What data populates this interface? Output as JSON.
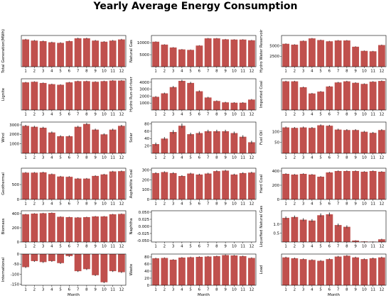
{
  "title": "Yearly Average Energy Consumption",
  "bar_color": "#c0504d",
  "err_color": "#444444",
  "chart_data": [
    {
      "type": "bar",
      "ylabel": "Total Generation(MWh)",
      "xlabel": "",
      "categories": [
        "1",
        "2",
        "3",
        "4",
        "5",
        "6",
        "7",
        "8",
        "9",
        "10",
        "11",
        "12"
      ],
      "values": [
        48,
        46,
        45,
        43,
        42,
        45,
        50,
        50,
        46,
        44,
        46,
        48
      ],
      "err": [
        1,
        1,
        1,
        1,
        1,
        1,
        1,
        1,
        1,
        1,
        1,
        1
      ],
      "ylim": [
        0,
        55
      ],
      "yticks": [],
      "ticklabels": []
    },
    {
      "type": "bar",
      "ylabel": "Natural Gas",
      "xlabel": "",
      "categories": [
        "1",
        "2",
        "3",
        "4",
        "5",
        "6",
        "7",
        "8",
        "9",
        "10",
        "11",
        "12"
      ],
      "values": [
        10400,
        9200,
        8000,
        7200,
        7000,
        8800,
        11800,
        11800,
        11400,
        11300,
        11300,
        11000
      ],
      "err": [
        150,
        150,
        150,
        150,
        150,
        150,
        150,
        150,
        150,
        150,
        150,
        150
      ],
      "ylim": [
        0,
        13000
      ],
      "yticks": [
        5000,
        10000
      ],
      "ticklabels": [
        "5000",
        "10000"
      ]
    },
    {
      "type": "bar",
      "ylabel": "Hydro Water Reservoir",
      "xlabel": "",
      "categories": [
        "1",
        "2",
        "3",
        "4",
        "5",
        "6",
        "7",
        "8",
        "9",
        "10",
        "11",
        "12"
      ],
      "values": [
        5500,
        5300,
        6200,
        6800,
        6400,
        6100,
        6300,
        6300,
        4800,
        3800,
        3700,
        5200
      ],
      "err": [
        100,
        100,
        100,
        100,
        100,
        100,
        100,
        100,
        100,
        100,
        100,
        100
      ],
      "ylim": [
        0,
        7500
      ],
      "yticks": [
        2500,
        5000
      ],
      "ticklabels": [
        "2500",
        "5000"
      ]
    },
    {
      "type": "bar",
      "ylabel": "Lignite",
      "xlabel": "",
      "categories": [
        "1",
        "2",
        "3",
        "4",
        "5",
        "6",
        "7",
        "8",
        "9",
        "10",
        "11",
        "12"
      ],
      "values": [
        4600,
        4700,
        4500,
        4300,
        4200,
        4600,
        4800,
        4800,
        4700,
        4800,
        4900,
        4900
      ],
      "err": [
        80,
        80,
        80,
        80,
        80,
        80,
        80,
        80,
        80,
        80,
        80,
        80
      ],
      "ylim": [
        0,
        5200
      ],
      "yticks": [],
      "ticklabels": []
    },
    {
      "type": "bar",
      "ylabel": "Hydro Run-of-river",
      "xlabel": "",
      "categories": [
        "1",
        "2",
        "3",
        "4",
        "5",
        "6",
        "7",
        "8",
        "9",
        "10",
        "11",
        "12"
      ],
      "values": [
        1900,
        2400,
        3300,
        4200,
        3900,
        2700,
        1800,
        1300,
        1100,
        1050,
        1050,
        1500
      ],
      "err": [
        100,
        100,
        150,
        150,
        150,
        120,
        100,
        80,
        80,
        80,
        80,
        80
      ],
      "ylim": [
        0,
        4500
      ],
      "yticks": [
        1000,
        2000,
        3000,
        4000
      ],
      "ticklabels": [
        "1000",
        "2000",
        "3000",
        "4000"
      ]
    },
    {
      "type": "bar",
      "ylabel": "Imported Coal",
      "xlabel": "",
      "categories": [
        "1",
        "2",
        "3",
        "4",
        "5",
        "6",
        "7",
        "8",
        "9",
        "10",
        "11",
        "12"
      ],
      "values": [
        7800,
        7800,
        6200,
        4500,
        5000,
        6400,
        7500,
        7800,
        7400,
        7100,
        7700,
        7900
      ],
      "err": [
        150,
        150,
        150,
        150,
        150,
        150,
        150,
        150,
        150,
        150,
        150,
        150
      ],
      "ylim": [
        0,
        8500
      ],
      "yticks": [],
      "ticklabels": []
    },
    {
      "type": "bar",
      "ylabel": "Wind",
      "xlabel": "",
      "categories": [
        "1",
        "2",
        "3",
        "4",
        "5",
        "6",
        "7",
        "8",
        "9",
        "10",
        "11",
        "12"
      ],
      "values": [
        2900,
        2800,
        2700,
        2200,
        1800,
        1800,
        2800,
        3100,
        2500,
        2000,
        2500,
        2900
      ],
      "err": [
        100,
        100,
        100,
        100,
        100,
        100,
        100,
        100,
        100,
        100,
        100,
        100
      ],
      "ylim": [
        0,
        3300
      ],
      "yticks": [
        1000,
        2000,
        3000
      ],
      "ticklabels": [
        "1000",
        "2000",
        "3000"
      ]
    },
    {
      "type": "bar",
      "ylabel": "Solar",
      "xlabel": "",
      "categories": [
        "1",
        "2",
        "3",
        "4",
        "5",
        "6",
        "7",
        "8",
        "9",
        "10",
        "11",
        "12"
      ],
      "values": [
        25,
        40,
        58,
        75,
        52,
        55,
        60,
        60,
        60,
        55,
        45,
        30
      ],
      "err": [
        4,
        4,
        5,
        6,
        4,
        4,
        4,
        4,
        4,
        4,
        4,
        4
      ],
      "ylim": [
        0,
        85
      ],
      "yticks": [
        20,
        40,
        60,
        80
      ],
      "ticklabels": [
        "20",
        "40",
        "60",
        "80"
      ]
    },
    {
      "type": "bar",
      "ylabel": "Fuel Oil",
      "xlabel": "",
      "categories": [
        "1",
        "2",
        "3",
        "4",
        "5",
        "6",
        "7",
        "8",
        "9",
        "10",
        "11",
        "12"
      ],
      "values": [
        120,
        118,
        120,
        118,
        130,
        128,
        110,
        108,
        108,
        100,
        95,
        108
      ],
      "err": [
        4,
        4,
        4,
        4,
        4,
        4,
        4,
        4,
        4,
        4,
        4,
        4
      ],
      "ylim": [
        0,
        145
      ],
      "yticks": [
        50,
        100
      ],
      "ticklabels": [
        "50",
        "100"
      ]
    },
    {
      "type": "bar",
      "ylabel": "Geothermal",
      "xlabel": "",
      "categories": [
        "1",
        "2",
        "3",
        "4",
        "5",
        "6",
        "7",
        "8",
        "9",
        "10",
        "11",
        "12"
      ],
      "values": [
        900,
        900,
        910,
        850,
        770,
        760,
        700,
        700,
        790,
        840,
        940,
        950
      ],
      "err": [
        20,
        20,
        20,
        20,
        20,
        20,
        20,
        20,
        20,
        20,
        20,
        20
      ],
      "ylim": [
        0,
        1050
      ],
      "yticks": [
        0,
        500
      ],
      "ticklabels": [
        "0",
        "500"
      ]
    },
    {
      "type": "bar",
      "ylabel": "Asphaltite Coal",
      "xlabel": "",
      "categories": [
        "1",
        "2",
        "3",
        "4",
        "5",
        "6",
        "7",
        "8",
        "9",
        "10",
        "11",
        "12"
      ],
      "values": [
        270,
        280,
        270,
        240,
        265,
        255,
        265,
        290,
        295,
        255,
        270,
        275
      ],
      "err": [
        8,
        8,
        8,
        8,
        8,
        8,
        8,
        8,
        8,
        8,
        8,
        8
      ],
      "ylim": [
        0,
        320
      ],
      "yticks": [
        0,
        100,
        200,
        300
      ],
      "ticklabels": [
        "0",
        "100",
        "200",
        "300"
      ]
    },
    {
      "type": "bar",
      "ylabel": "Hard Coal",
      "xlabel": "",
      "categories": [
        "1",
        "2",
        "3",
        "4",
        "5",
        "6",
        "7",
        "8",
        "9",
        "10",
        "11",
        "12"
      ],
      "values": [
        360,
        350,
        360,
        350,
        320,
        380,
        400,
        400,
        400,
        390,
        400,
        390
      ],
      "err": [
        8,
        8,
        8,
        8,
        8,
        8,
        8,
        8,
        8,
        8,
        8,
        8
      ],
      "ylim": [
        0,
        440
      ],
      "yticks": [
        0,
        200,
        400
      ],
      "ticklabels": [
        "0",
        "200",
        "400"
      ]
    },
    {
      "type": "bar",
      "ylabel": "Biomass",
      "xlabel": "",
      "categories": [
        "1",
        "2",
        "3",
        "4",
        "5",
        "6",
        "7",
        "8",
        "9",
        "10",
        "11",
        "12"
      ],
      "values": [
        390,
        400,
        405,
        410,
        355,
        350,
        345,
        350,
        360,
        360,
        390,
        395
      ],
      "err": [
        6,
        6,
        6,
        6,
        6,
        6,
        6,
        6,
        6,
        6,
        6,
        6
      ],
      "ylim": [
        0,
        440
      ],
      "yticks": [
        0,
        200,
        400
      ],
      "ticklabels": [
        "0",
        "200",
        "400"
      ]
    },
    {
      "type": "bar",
      "ylabel": "Naphtha",
      "xlabel": "",
      "categories": [
        "1",
        "2",
        "3",
        "4",
        "5",
        "6",
        "7",
        "8",
        "9",
        "10",
        "11",
        "12"
      ],
      "values": [
        0,
        0,
        0,
        0,
        0,
        0,
        0,
        0,
        0,
        0,
        0,
        0
      ],
      "err": [
        0,
        0,
        0,
        0,
        0,
        0,
        0,
        0,
        0,
        0,
        0,
        0
      ],
      "ylim": [
        -0.055,
        0.055
      ],
      "yticks": [
        -0.05,
        -0.025,
        0,
        0.025,
        0.05
      ],
      "ticklabels": [
        "-0.050",
        "-0.025",
        "0.000",
        "0.025",
        "0.050"
      ]
    },
    {
      "type": "bar",
      "ylabel": "Liquefied Natural Gas",
      "xlabel": "",
      "categories": [
        "1",
        "2",
        "3",
        "4",
        "5",
        "6",
        "7",
        "8",
        "9",
        "10",
        "11",
        "12"
      ],
      "values": [
        1.35,
        1.4,
        1.25,
        1.2,
        1.5,
        1.55,
        0.95,
        0.85,
        0.08,
        0.03,
        0.02,
        0.15
      ],
      "err": [
        0.08,
        0.08,
        0.08,
        0.08,
        0.1,
        0.1,
        0.08,
        0.08,
        0.02,
        0.01,
        0.01,
        0.03
      ],
      "ylim": [
        0,
        1.75
      ],
      "yticks": [
        0.5,
        1
      ],
      "ticklabels": [
        "0.5",
        "1.0"
      ]
    },
    {
      "type": "bar",
      "ylabel": "International",
      "xlabel": "Month",
      "categories": [
        "1",
        "2",
        "3",
        "4",
        "5",
        "6",
        "7",
        "8",
        "9",
        "10",
        "11",
        "12"
      ],
      "values": [
        -65,
        -35,
        -40,
        -35,
        -45,
        -10,
        -85,
        -75,
        -105,
        -140,
        -85,
        -90
      ],
      "err": [
        4,
        4,
        4,
        4,
        4,
        4,
        4,
        4,
        4,
        4,
        4,
        4
      ],
      "ylim": [
        -155,
        0
      ],
      "yticks": [
        -150,
        -100,
        -50,
        0
      ],
      "ticklabels": [
        "-150",
        "-100",
        "-50",
        "0"
      ]
    },
    {
      "type": "bar",
      "ylabel": "Waste",
      "xlabel": "Month",
      "categories": [
        "1",
        "2",
        "3",
        "4",
        "5",
        "6",
        "7",
        "8",
        "9",
        "10",
        "11",
        "12"
      ],
      "values": [
        76,
        77,
        72,
        78,
        79,
        80,
        81,
        82,
        85,
        84,
        82,
        77
      ],
      "err": [
        1.5,
        1.5,
        1.5,
        1.5,
        1.5,
        1.5,
        1.5,
        1.5,
        1.5,
        1.5,
        1.5,
        1.5
      ],
      "ylim": [
        0,
        88
      ],
      "yticks": [
        0,
        20,
        40,
        60,
        80
      ],
      "ticklabels": [
        "0",
        "20",
        "40",
        "60",
        "80"
      ]
    },
    {
      "type": "bar",
      "ylabel": "Load",
      "xlabel": "Month",
      "categories": [
        "1",
        "2",
        "3",
        "4",
        "5",
        "6",
        "7",
        "8",
        "9",
        "10",
        "11",
        "12"
      ],
      "values": [
        33,
        32,
        31,
        30,
        29,
        31,
        34,
        35,
        33,
        31,
        32,
        33
      ],
      "err": [
        0.8,
        0.8,
        0.8,
        0.8,
        0.8,
        0.8,
        0.8,
        0.8,
        0.8,
        0.8,
        0.8,
        0.8
      ],
      "ylim": [
        0,
        37
      ],
      "yticks": [],
      "ticklabels": []
    }
  ]
}
